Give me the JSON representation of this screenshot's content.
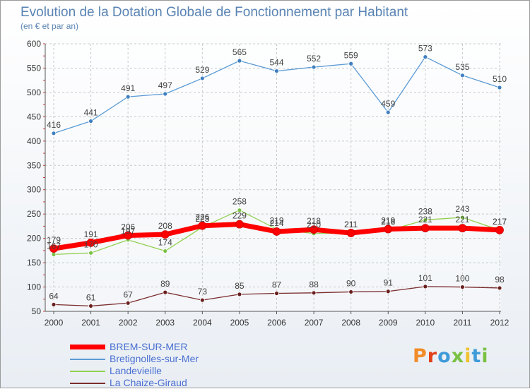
{
  "chart_data": {
    "type": "line",
    "title": "Evolution de la Dotation Globale de Fonctionnement par Habitant",
    "subtitle": "(en € et par an)",
    "xlabel": "",
    "ylabel": "",
    "ylim": [
      50,
      600
    ],
    "yticks": [
      50,
      100,
      150,
      200,
      250,
      300,
      350,
      400,
      450,
      500,
      550,
      600
    ],
    "grid": true,
    "x": [
      "2000",
      "2001",
      "2002",
      "2003",
      "2004",
      "2005",
      "2006",
      "2007",
      "2008",
      "2009",
      "2010",
      "2011",
      "2012"
    ],
    "series": [
      {
        "name": "Bretignolles-sur-Mer",
        "color": "#5b9bd5",
        "marker": "#3f7fc0",
        "values": [
          416,
          441,
          491,
          497,
          529,
          565,
          544,
          552,
          559,
          459,
          573,
          535,
          510
        ]
      },
      {
        "name": "Landevieille",
        "color": "#92d050",
        "marker": "#7ac143",
        "values": [
          167,
          170,
          197,
          174,
          223,
          258,
          219,
          210,
          211,
          216,
          238,
          243,
          217
        ]
      },
      {
        "name": "La Chaize-Giraud",
        "color": "#7b2d2d",
        "marker": "#6a1f1f",
        "values": [
          64,
          61,
          67,
          89,
          73,
          85,
          87,
          88,
          90,
          91,
          101,
          100,
          98
        ]
      },
      {
        "name": "BREM-SUR-MER",
        "color": "#ff0000",
        "marker": "#ff0000",
        "values": [
          179,
          191,
          206,
          208,
          226,
          229,
          214,
          218,
          211,
          219,
          221,
          221,
          217
        ]
      }
    ],
    "legend": [
      "BREM-SUR-MER",
      "Bretignolles-sur-Mer",
      "Landevieille",
      "La Chaize-Giraud"
    ]
  },
  "brand": {
    "logo_text": "Proxiti"
  }
}
